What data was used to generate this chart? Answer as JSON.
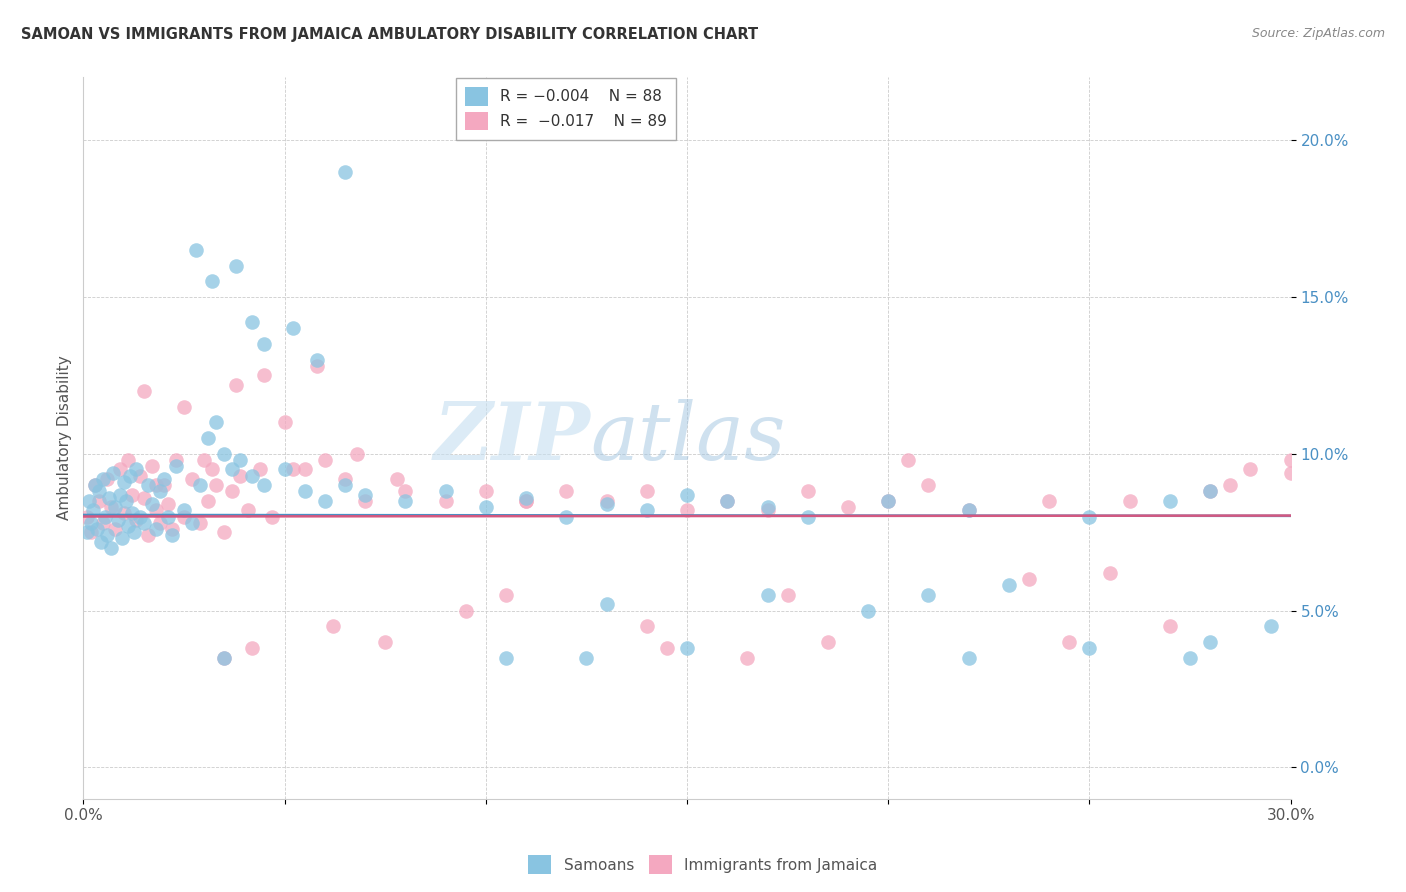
{
  "title": "SAMOAN VS IMMIGRANTS FROM JAMAICA AMBULATORY DISABILITY CORRELATION CHART",
  "source": "Source: ZipAtlas.com",
  "ylabel": "Ambulatory Disability",
  "xlim": [
    0.0,
    30.0
  ],
  "ylim": [
    -1.0,
    22.0
  ],
  "yticks": [
    0.0,
    5.0,
    10.0,
    15.0,
    20.0
  ],
  "xticks": [
    0.0,
    5.0,
    10.0,
    15.0,
    20.0,
    25.0,
    30.0
  ],
  "color_blue": "#89c4e1",
  "color_pink": "#f4a8c0",
  "color_trend_blue": "#4a90c4",
  "color_trend_pink": "#d45880",
  "watermark_zip": "ZIP",
  "watermark_atlas": "atlas",
  "legend_label1": "Samoans",
  "legend_label2": "Immigrants from Jamaica",
  "trend_blue_intercept": 8.05,
  "trend_blue_slope": -0.001,
  "trend_pink_intercept": 8.0,
  "trend_pink_slope": 0.001,
  "samoans_x": [
    0.1,
    0.15,
    0.2,
    0.25,
    0.3,
    0.35,
    0.4,
    0.45,
    0.5,
    0.55,
    0.6,
    0.65,
    0.7,
    0.75,
    0.8,
    0.85,
    0.9,
    0.95,
    1.0,
    1.05,
    1.1,
    1.15,
    1.2,
    1.25,
    1.3,
    1.4,
    1.5,
    1.6,
    1.7,
    1.8,
    1.9,
    2.0,
    2.1,
    2.2,
    2.3,
    2.5,
    2.7,
    2.9,
    3.1,
    3.3,
    3.5,
    3.7,
    3.9,
    4.2,
    4.5,
    5.0,
    5.5,
    6.0,
    6.5,
    7.0,
    8.0,
    9.0,
    10.0,
    11.0,
    12.0,
    13.0,
    14.0,
    15.0,
    16.0,
    17.0,
    18.0,
    20.0,
    22.0,
    25.0,
    27.0,
    28.0,
    6.5,
    2.8,
    3.2,
    4.5,
    4.2,
    3.8,
    5.2,
    5.8,
    3.5,
    10.5,
    12.5,
    15.0,
    22.0,
    25.0,
    27.5,
    28.0,
    29.5,
    13.0,
    17.0,
    19.5,
    21.0,
    23.0
  ],
  "samoans_y": [
    7.5,
    8.5,
    7.8,
    8.2,
    9.0,
    7.6,
    8.8,
    7.2,
    9.2,
    8.0,
    7.4,
    8.6,
    7.0,
    9.4,
    8.3,
    7.9,
    8.7,
    7.3,
    9.1,
    8.5,
    7.7,
    9.3,
    8.1,
    7.5,
    9.5,
    8.0,
    7.8,
    9.0,
    8.4,
    7.6,
    8.8,
    9.2,
    8.0,
    7.4,
    9.6,
    8.2,
    7.8,
    9.0,
    10.5,
    11.0,
    10.0,
    9.5,
    9.8,
    9.3,
    9.0,
    9.5,
    8.8,
    8.5,
    9.0,
    8.7,
    8.5,
    8.8,
    8.3,
    8.6,
    8.0,
    8.4,
    8.2,
    8.7,
    8.5,
    8.3,
    8.0,
    8.5,
    8.2,
    8.0,
    8.5,
    8.8,
    19.0,
    16.5,
    15.5,
    13.5,
    14.2,
    16.0,
    14.0,
    13.0,
    3.5,
    3.5,
    3.5,
    3.8,
    3.5,
    3.8,
    3.5,
    4.0,
    4.5,
    5.2,
    5.5,
    5.0,
    5.5,
    5.8
  ],
  "jamaica_x": [
    0.1,
    0.2,
    0.3,
    0.4,
    0.5,
    0.6,
    0.7,
    0.8,
    0.9,
    1.0,
    1.1,
    1.2,
    1.3,
    1.4,
    1.5,
    1.6,
    1.7,
    1.8,
    1.9,
    2.0,
    2.1,
    2.2,
    2.3,
    2.5,
    2.7,
    2.9,
    3.1,
    3.3,
    3.5,
    3.7,
    3.9,
    4.1,
    4.4,
    4.7,
    5.0,
    5.5,
    6.0,
    6.5,
    7.0,
    8.0,
    9.0,
    10.0,
    11.0,
    12.0,
    13.0,
    14.0,
    15.0,
    16.0,
    17.0,
    18.0,
    19.0,
    20.0,
    22.0,
    24.0,
    26.0,
    28.0,
    30.0,
    1.5,
    2.5,
    3.8,
    4.5,
    5.8,
    6.8,
    3.5,
    4.2,
    6.2,
    7.5,
    9.5,
    10.5,
    14.5,
    16.5,
    18.5,
    20.5,
    23.5,
    25.5,
    28.5,
    3.0,
    5.2,
    7.8,
    11.0,
    14.0,
    17.5,
    21.0,
    24.5,
    27.0,
    29.0,
    30.0,
    1.8,
    3.2
  ],
  "jamaica_y": [
    8.0,
    7.5,
    9.0,
    8.5,
    7.8,
    9.2,
    8.3,
    7.6,
    9.5,
    8.1,
    9.8,
    8.7,
    7.9,
    9.3,
    8.6,
    7.4,
    9.6,
    8.2,
    7.8,
    9.0,
    8.4,
    7.6,
    9.8,
    8.0,
    9.2,
    7.8,
    8.5,
    9.0,
    7.5,
    8.8,
    9.3,
    8.2,
    9.5,
    8.0,
    11.0,
    9.5,
    9.8,
    9.2,
    8.5,
    8.8,
    8.5,
    8.8,
    8.5,
    8.8,
    8.5,
    8.8,
    8.2,
    8.5,
    8.2,
    8.8,
    8.3,
    8.5,
    8.2,
    8.5,
    8.5,
    8.8,
    9.4,
    12.0,
    11.5,
    12.2,
    12.5,
    12.8,
    10.0,
    3.5,
    3.8,
    4.5,
    4.0,
    5.0,
    5.5,
    3.8,
    3.5,
    4.0,
    9.8,
    6.0,
    6.2,
    9.0,
    9.8,
    9.5,
    9.2,
    8.5,
    4.5,
    5.5,
    9.0,
    4.0,
    4.5,
    9.5,
    9.8,
    9.0,
    9.5
  ]
}
